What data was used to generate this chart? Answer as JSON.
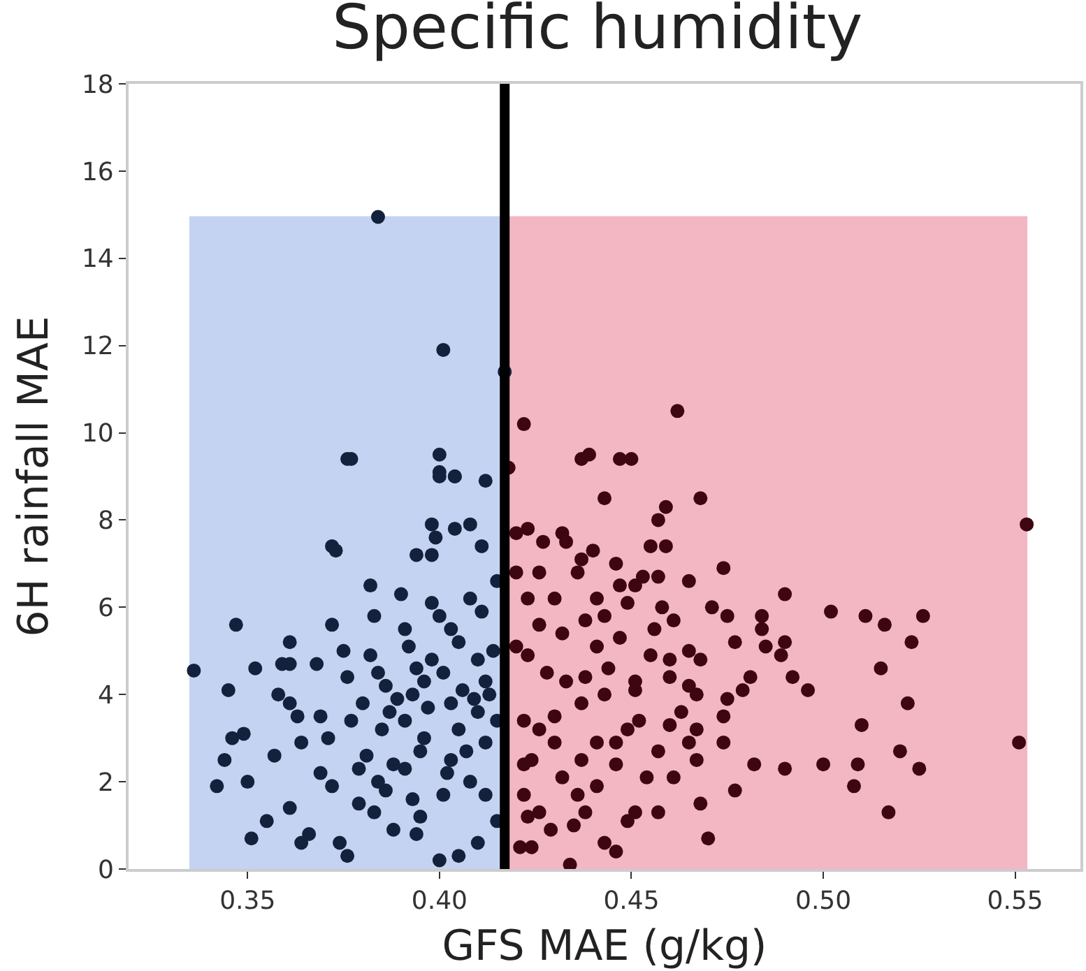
{
  "chart_data": {
    "type": "scatter",
    "title": "Specific humidity",
    "xlabel": "GFS MAE (g/kg)",
    "ylabel": "6H rainfall MAE",
    "xlim": [
      0.319,
      0.567
    ],
    "ylim": [
      0,
      18
    ],
    "xticks": [
      0.35,
      {
        "value": 0.4,
        "label": "0.40"
      },
      0.45,
      {
        "value": 0.5,
        "label": "0.50"
      },
      0.55
    ],
    "yticks": [
      0,
      2,
      4,
      6,
      8,
      10,
      12,
      14,
      16,
      18
    ],
    "grid": false,
    "marker": "circle",
    "bands": [
      {
        "axis": "x",
        "from": 0.335,
        "to": 0.417,
        "color": "#c5d3f3"
      },
      {
        "axis": "x",
        "from": 0.417,
        "to": 0.553,
        "color": "#f3b6c3"
      }
    ],
    "ref_lines": [
      {
        "axis": "x",
        "value": 0.417,
        "color": "#000000"
      }
    ],
    "series": [
      {
        "color": "#14213d",
        "x": [
          0.336,
          0.384,
          0.401,
          0.377,
          0.4,
          0.372,
          0.361,
          0.347,
          0.342,
          0.344,
          0.346,
          0.349,
          0.345,
          0.352,
          0.351,
          0.35,
          0.355,
          0.359,
          0.361,
          0.358,
          0.361,
          0.363,
          0.364,
          0.361,
          0.364,
          0.368,
          0.369,
          0.372,
          0.373,
          0.375,
          0.376,
          0.371,
          0.372,
          0.366,
          0.377,
          0.379,
          0.374,
          0.382,
          0.383,
          0.39,
          0.382,
          0.384,
          0.38,
          0.385,
          0.381,
          0.383,
          0.388,
          0.391,
          0.392,
          0.394,
          0.393,
          0.391,
          0.395,
          0.391,
          0.393,
          0.394,
          0.398,
          0.399,
          0.394,
          0.398,
          0.404,
          0.408,
          0.411,
          0.412,
          0.404,
          0.4,
          0.398,
          0.4,
          0.403,
          0.405,
          0.398,
          0.401,
          0.408,
          0.411,
          0.41,
          0.412,
          0.403,
          0.41,
          0.405,
          0.412,
          0.403,
          0.408,
          0.412,
          0.401,
          0.41,
          0.405,
          0.4,
          0.376,
          0.415,
          0.415,
          0.415,
          0.376,
          0.417,
          0.4,
          0.404,
          0.386,
          0.389,
          0.396,
          0.387,
          0.397,
          0.406,
          0.409,
          0.413,
          0.388,
          0.396,
          0.407,
          0.379,
          0.386,
          0.395,
          0.402,
          0.414,
          0.369,
          0.357,
          0.384
        ],
        "values": [
          4.55,
          14.95,
          11.9,
          9.4,
          9.5,
          7.4,
          4.7,
          5.6,
          1.9,
          2.5,
          3.0,
          3.1,
          4.1,
          4.6,
          0.7,
          2.0,
          1.1,
          4.7,
          5.2,
          4.0,
          3.8,
          3.5,
          2.9,
          1.4,
          0.6,
          4.7,
          3.5,
          5.6,
          7.3,
          5.0,
          4.4,
          3.0,
          1.9,
          0.8,
          3.4,
          2.3,
          0.6,
          6.5,
          5.8,
          6.3,
          4.9,
          4.5,
          3.8,
          3.2,
          2.6,
          1.3,
          0.9,
          5.5,
          5.1,
          4.6,
          4.0,
          3.4,
          2.7,
          2.3,
          1.6,
          0.8,
          7.9,
          7.6,
          7.2,
          7.2,
          7.8,
          7.9,
          7.4,
          8.9,
          9.0,
          9.0,
          6.1,
          5.8,
          5.5,
          5.2,
          4.8,
          4.5,
          6.2,
          5.9,
          4.8,
          4.3,
          3.8,
          3.6,
          3.2,
          2.9,
          2.5,
          2.0,
          1.7,
          1.7,
          0.6,
          0.3,
          0.2,
          0.3,
          6.6,
          3.4,
          1.1,
          9.4,
          11.4,
          9.1,
          9.0,
          4.2,
          3.9,
          4.3,
          3.6,
          3.7,
          4.1,
          3.9,
          4.0,
          2.4,
          3.0,
          2.7,
          1.5,
          1.8,
          1.2,
          2.2,
          5.0,
          2.2,
          2.6,
          2.0
        ]
      },
      {
        "color": "#3d0610",
        "x": [
          0.553,
          0.551,
          0.526,
          0.516,
          0.511,
          0.502,
          0.523,
          0.515,
          0.522,
          0.51,
          0.52,
          0.525,
          0.509,
          0.5,
          0.508,
          0.517,
          0.49,
          0.484,
          0.484,
          0.49,
          0.485,
          0.489,
          0.492,
          0.496,
          0.482,
          0.49,
          0.477,
          0.474,
          0.471,
          0.475,
          0.477,
          0.481,
          0.479,
          0.475,
          0.474,
          0.474,
          0.47,
          0.468,
          0.468,
          0.459,
          0.457,
          0.459,
          0.455,
          0.443,
          0.446,
          0.44,
          0.437,
          0.432,
          0.433,
          0.427,
          0.423,
          0.42,
          0.436,
          0.447,
          0.451,
          0.453,
          0.457,
          0.465,
          0.449,
          0.458,
          0.461,
          0.456,
          0.465,
          0.468,
          0.46,
          0.465,
          0.467,
          0.463,
          0.467,
          0.465,
          0.467,
          0.46,
          0.457,
          0.461,
          0.454,
          0.452,
          0.451,
          0.457,
          0.451,
          0.449,
          0.446,
          0.443,
          0.435,
          0.429,
          0.426,
          0.421,
          0.424,
          0.423,
          0.422,
          0.434,
          0.438,
          0.441,
          0.436,
          0.432,
          0.446,
          0.441,
          0.446,
          0.449,
          0.437,
          0.43,
          0.424,
          0.422,
          0.426,
          0.422,
          0.43,
          0.437,
          0.443,
          0.451,
          0.444,
          0.438,
          0.433,
          0.428,
          0.423,
          0.42,
          0.426,
          0.432,
          0.438,
          0.443,
          0.441,
          0.447,
          0.455,
          0.46,
          0.423,
          0.43,
          0.42,
          0.426,
          0.441,
          0.422,
          0.462,
          0.437,
          0.439,
          0.447,
          0.45,
          0.418
        ],
        "values": [
          7.9,
          2.9,
          5.8,
          5.6,
          5.8,
          5.9,
          5.2,
          4.6,
          3.8,
          3.3,
          2.7,
          2.3,
          2.4,
          2.4,
          1.9,
          1.3,
          6.3,
          5.8,
          5.5,
          5.2,
          5.1,
          4.9,
          4.4,
          4.1,
          2.4,
          2.3,
          1.8,
          6.9,
          6.0,
          5.8,
          5.2,
          4.4,
          4.1,
          3.9,
          3.5,
          2.9,
          0.7,
          1.5,
          8.5,
          8.3,
          8.0,
          7.4,
          7.4,
          8.5,
          7.0,
          7.3,
          7.1,
          7.7,
          7.5,
          7.5,
          7.8,
          7.7,
          6.8,
          6.5,
          6.5,
          6.7,
          6.7,
          6.6,
          6.1,
          6.0,
          5.7,
          5.5,
          5.0,
          4.8,
          4.4,
          4.2,
          4.0,
          3.6,
          3.2,
          2.9,
          2.5,
          3.3,
          2.7,
          2.1,
          2.1,
          3.4,
          4.3,
          1.3,
          1.3,
          1.1,
          0.4,
          0.6,
          1.0,
          0.9,
          1.3,
          0.5,
          0.5,
          1.2,
          1.7,
          0.1,
          1.3,
          1.9,
          1.7,
          2.1,
          2.4,
          2.9,
          2.9,
          3.2,
          2.5,
          2.9,
          2.5,
          2.4,
          3.2,
          3.4,
          3.5,
          3.8,
          4.0,
          4.1,
          4.6,
          4.4,
          4.3,
          4.5,
          4.9,
          5.1,
          5.6,
          5.4,
          5.7,
          5.8,
          5.1,
          5.3,
          4.9,
          4.8,
          6.2,
          6.2,
          6.8,
          6.8,
          6.2,
          10.2,
          10.5,
          9.4,
          9.5,
          9.4,
          9.4,
          9.2
        ]
      }
    ]
  }
}
